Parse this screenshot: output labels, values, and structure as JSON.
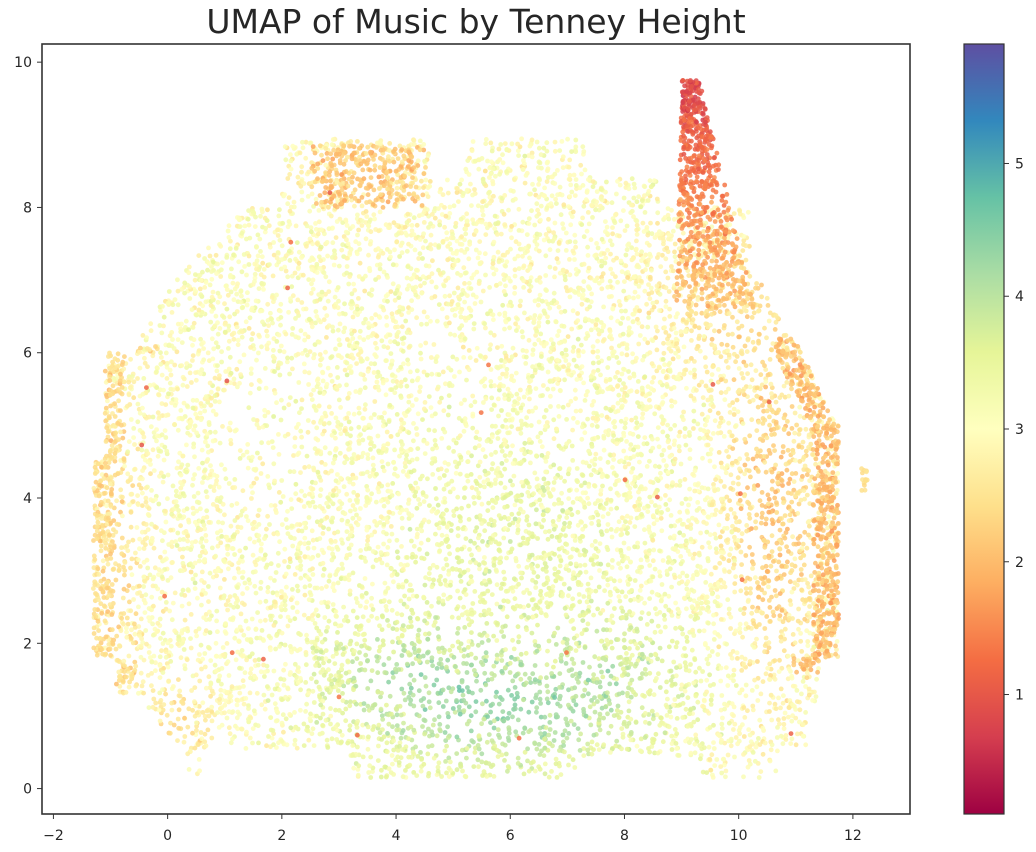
{
  "chart_data": {
    "type": "scatter",
    "title": "UMAP of Music by Tenney Height",
    "xlabel": "",
    "ylabel": "",
    "xlim": [
      -2.2,
      13.0
    ],
    "ylim": [
      -0.35,
      10.25
    ],
    "x_ticks": [
      -2,
      0,
      2,
      4,
      6,
      8,
      10,
      12
    ],
    "y_ticks": [
      0,
      2,
      4,
      6,
      8,
      10
    ],
    "grid": false,
    "colormap": "Spectral",
    "colorbar": {
      "range": [
        0.1,
        5.9
      ],
      "ticks": [
        1,
        2,
        3,
        4,
        5
      ]
    },
    "colormap_stops": [
      "#9e0142",
      "#d53e4f",
      "#f46d43",
      "#fdae61",
      "#fee08b",
      "#ffffbf",
      "#e6f598",
      "#abdda4",
      "#66c2a5",
      "#3288bd",
      "#5e4fa2"
    ],
    "point_opacity": 0.85,
    "regions": [
      {
        "name": "main body",
        "approx_points": 9500,
        "x": [
          -1.3,
          11.7
        ],
        "y": [
          0.2,
          8.9
        ],
        "typical_height": [
          2.2,
          4.2
        ]
      },
      {
        "name": "lower center cluster",
        "x": [
          2.5,
          9.5
        ],
        "y": [
          0.3,
          2.8
        ],
        "typical_height": [
          3.6,
          4.6
        ]
      },
      {
        "name": "upper right spike",
        "x": [
          8.3,
          10.2
        ],
        "y": [
          6.5,
          9.8
        ],
        "typical_height": [
          0.8,
          2.3
        ]
      },
      {
        "name": "right edge",
        "x": [
          10.5,
          11.8
        ],
        "y": [
          1.5,
          6.0
        ],
        "typical_height": [
          1.7,
          2.6
        ]
      },
      {
        "name": "top left ridge",
        "x": [
          2.5,
          4.5
        ],
        "y": [
          7.8,
          8.9
        ],
        "typical_height": [
          1.8,
          2.5
        ]
      },
      {
        "name": "isolated right blob",
        "x": [
          12.1,
          12.3
        ],
        "y": [
          4.1,
          4.5
        ],
        "typical_height": [
          2.3,
          2.6
        ]
      }
    ]
  }
}
